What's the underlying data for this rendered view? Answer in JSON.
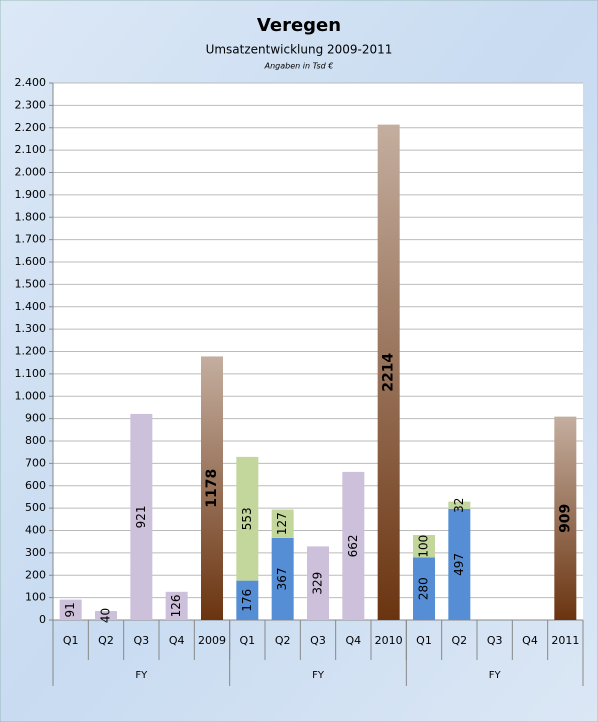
{
  "chart_data": {
    "type": "bar",
    "stacked": true,
    "title": "Veregen",
    "subtitle": "Umsatzentwicklung 2009-2011",
    "note": "Angaben in Tsd €",
    "categories": [
      "Q1",
      "Q2",
      "Q3",
      "Q4",
      "2009",
      "Q1",
      "Q2",
      "Q3",
      "Q4",
      "2010",
      "Q1",
      "Q2",
      "Q3",
      "Q4",
      "2011"
    ],
    "group_labels": [
      "FY",
      "FY",
      "FY"
    ],
    "series": [
      {
        "color": "#ccc0da",
        "values": [
          91,
          40,
          921,
          126,
          null,
          null,
          null,
          329,
          662,
          null,
          null,
          null,
          null,
          null,
          null
        ]
      },
      {
        "color": "#558ed5",
        "values": [
          null,
          null,
          null,
          null,
          null,
          176,
          367,
          null,
          null,
          null,
          280,
          497,
          null,
          null,
          null
        ]
      },
      {
        "color": "#c3d69b",
        "values": [
          null,
          null,
          null,
          null,
          null,
          553,
          127,
          null,
          null,
          null,
          100,
          32,
          null,
          null,
          null
        ]
      },
      {
        "color": "#6b3410",
        "gradient": true,
        "values": [
          null,
          null,
          null,
          null,
          1178,
          null,
          null,
          null,
          null,
          2214,
          null,
          null,
          null,
          null,
          909
        ]
      }
    ],
    "ylim": [
      0,
      2400
    ],
    "yticks": [
      0,
      100,
      200,
      300,
      400,
      500,
      600,
      700,
      800,
      900,
      {
        "value": 1000,
        "label": "1.000"
      },
      {
        "value": 1100,
        "label": "1.100"
      },
      {
        "value": 1200,
        "label": "1.200"
      },
      {
        "value": 1300,
        "label": "1.300"
      },
      {
        "value": 1400,
        "label": "1.400"
      },
      {
        "value": 1500,
        "label": "1.500"
      },
      {
        "value": 1600,
        "label": "1.600"
      },
      {
        "value": 1700,
        "label": "1.700"
      },
      {
        "value": 1800,
        "label": "1.800"
      },
      {
        "value": 1900,
        "label": "1.900"
      },
      {
        "value": 2000,
        "label": "2.000"
      },
      {
        "value": 2100,
        "label": "2.100"
      },
      {
        "value": 2200,
        "label": "2.200"
      },
      {
        "value": 2300,
        "label": "2.300"
      },
      {
        "value": 2400,
        "label": "2.400"
      }
    ],
    "grid": true
  }
}
